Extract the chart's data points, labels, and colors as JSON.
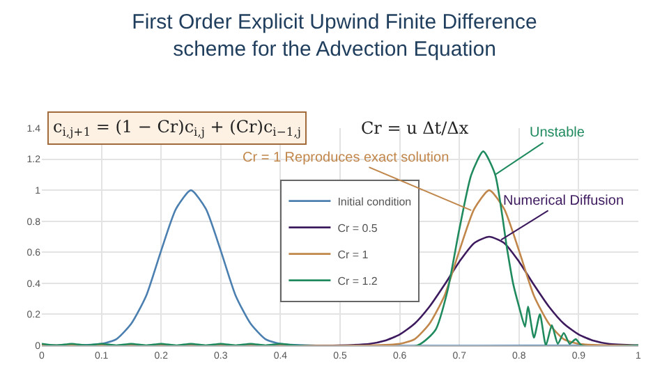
{
  "chart_data": {
    "type": "line",
    "title": "First Order Explicit Upwind Finite Difference\nscheme for the Advection Equation",
    "xlim": [
      0,
      1
    ],
    "xticks": [
      0,
      0.1,
      0.2,
      0.3,
      0.4,
      0.5,
      0.6,
      0.7,
      0.8,
      0.9,
      1
    ],
    "ylim": [
      0,
      1.4
    ],
    "yticks": [
      0,
      0.2,
      0.4,
      0.6,
      0.8,
      1,
      1.2,
      1.4
    ],
    "grid": true,
    "legend": "center",
    "marker": "none",
    "line_style": "solid",
    "annotations": [
      "c$_{i,j+1}$ = (1 − Cr)c$_{i,j}$ + (Cr)c$_{i−1,j}$",
      "Cr = u Δt/Δx",
      {
        "text": "Cr = 1 Reproduces exact solution",
        "x": 0.72,
        "y": 0.87
      },
      {
        "text": "Unstable",
        "x": 0.76,
        "y": 1.1
      },
      {
        "text": "Numerical Diffusion",
        "x": 0.77,
        "y": 0.68
      }
    ],
    "series": [
      {
        "name": "Initial condition",
        "color": "#4a7fb0",
        "x": [
          0,
          0.05,
          0.1,
          0.125,
          0.15,
          0.175,
          0.2,
          0.225,
          0.25,
          0.275,
          0.3,
          0.325,
          0.35,
          0.375,
          0.4,
          0.45,
          1
        ],
        "values": [
          0,
          0,
          0.01,
          0.04,
          0.14,
          0.32,
          0.61,
          0.88,
          1,
          0.88,
          0.61,
          0.32,
          0.14,
          0.04,
          0.01,
          0,
          0
        ]
      },
      {
        "name": "Cr = 0.5",
        "color": "#3d1a5e",
        "x": [
          0,
          0.5,
          0.55,
          0.575,
          0.6,
          0.625,
          0.65,
          0.675,
          0.7,
          0.725,
          0.75,
          0.775,
          0.8,
          0.825,
          0.85,
          0.875,
          0.9,
          0.925,
          0.95,
          1
        ],
        "values": [
          0,
          0,
          0.01,
          0.03,
          0.07,
          0.14,
          0.25,
          0.39,
          0.54,
          0.66,
          0.7,
          0.66,
          0.54,
          0.39,
          0.25,
          0.14,
          0.07,
          0.03,
          0.01,
          0
        ]
      },
      {
        "name": "Cr = 1",
        "color": "#c0864a",
        "x": [
          0,
          0.55,
          0.6,
          0.625,
          0.65,
          0.675,
          0.7,
          0.725,
          0.75,
          0.775,
          0.8,
          0.825,
          0.85,
          0.875,
          0.9,
          0.95,
          1
        ],
        "values": [
          0,
          0,
          0.01,
          0.04,
          0.14,
          0.32,
          0.61,
          0.88,
          1,
          0.88,
          0.61,
          0.32,
          0.14,
          0.04,
          0.01,
          0,
          0
        ]
      },
      {
        "name": "Cr = 1.2",
        "color": "#1f8a5e",
        "x": [
          0,
          0.025,
          0.05,
          0.075,
          0.1,
          0.125,
          0.15,
          0.175,
          0.2,
          0.225,
          0.25,
          0.275,
          0.3,
          0.325,
          0.35,
          0.375,
          0.4,
          0.425,
          0.63,
          0.66,
          0.68,
          0.7,
          0.72,
          0.74,
          0.76,
          0.78,
          0.79,
          0.8,
          0.81,
          0.815,
          0.825,
          0.835,
          0.845,
          0.855,
          0.865,
          0.875,
          0.885,
          0.895,
          0.905,
          1
        ],
        "values": [
          0.01,
          0,
          0.01,
          0,
          0.01,
          0,
          0.01,
          0,
          0.01,
          0,
          0.01,
          0,
          0.01,
          0,
          0.01,
          0,
          0.01,
          0,
          0,
          0.1,
          0.35,
          0.75,
          1.1,
          1.25,
          1.1,
          0.62,
          0.4,
          0.25,
          0.12,
          0.25,
          0.05,
          0.2,
          0,
          0.13,
          0.01,
          0.08,
          0.01,
          0.04,
          0,
          0
        ]
      }
    ]
  }
}
